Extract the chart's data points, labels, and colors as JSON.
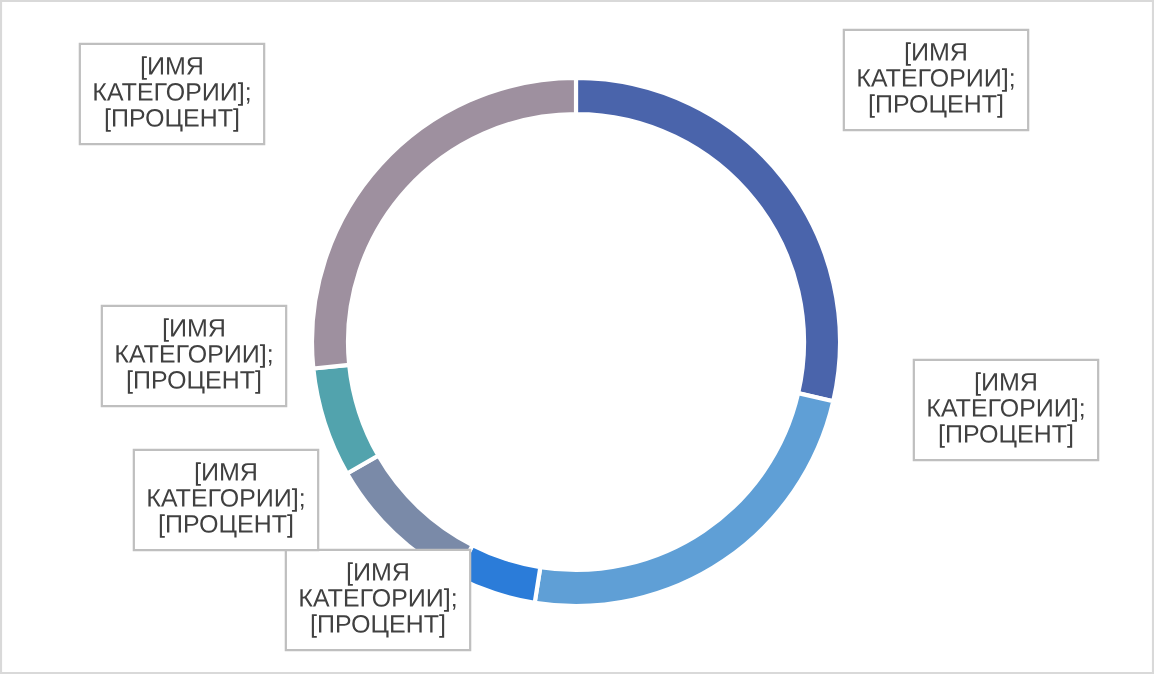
{
  "chart_data": {
    "type": "donut",
    "categories": [
      null,
      null,
      null,
      null,
      null,
      null
    ],
    "values": [
      28.6,
      23.9,
      5.0,
      9.2,
      6.7,
      26.6
    ],
    "colors": [
      "#4a64ab",
      "#5f9fd6",
      "#2b7cd9",
      "#7a8aa8",
      "#52a3ad",
      "#9e909f"
    ],
    "value_labels": [
      "[ИМЯ КАТЕГОРИИ]; [ПРОЦЕНТ]",
      "[ИМЯ КАТЕГОРИИ]; [ПРОЦЕНТ]",
      "[ИМЯ КАТЕГОРИИ]; [ПРОЦЕНТ]",
      "[ИМЯ КАТЕГОРИИ]; [ПРОЦЕНТ]",
      "[ИМЯ КАТЕГОРИИ]; [ПРОЦЕНТ]",
      "[ИМЯ КАТЕГОРИИ]; [ПРОЦЕНТ]"
    ],
    "legend": false
  }
}
